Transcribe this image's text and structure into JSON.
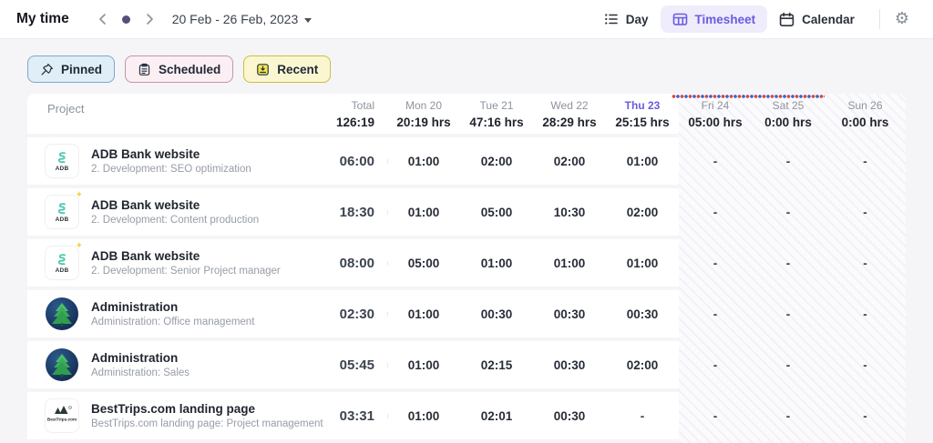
{
  "topbar": {
    "title": "My time",
    "date_range": "20 Feb - 26 Feb, 2023",
    "views": [
      {
        "label": "Day",
        "icon": "list-icon",
        "active": false
      },
      {
        "label": "Timesheet",
        "icon": "table-icon",
        "active": true
      },
      {
        "label": "Calendar",
        "icon": "calendar-icon",
        "active": false
      }
    ]
  },
  "filters": [
    {
      "label": "Pinned",
      "icon": "pin-icon",
      "bg": "#dfeef7",
      "border": "#7fa9c6"
    },
    {
      "label": "Scheduled",
      "icon": "clipboard-icon",
      "bg": "#fceff3",
      "border": "#c495a7"
    },
    {
      "label": "Recent",
      "icon": "recent-icon",
      "bg": "#faf7d0",
      "border": "#c9bd45"
    }
  ],
  "colors": {
    "accent_primary": "#6a5be0",
    "today_highlight": "#6a5be0",
    "bunting_red": "#d9463c",
    "bunting_blue": "#3f63cc"
  },
  "table": {
    "project_header": "Project",
    "total_header": {
      "label": "Total",
      "value": "126:19"
    },
    "days": [
      {
        "label": "Mon 20",
        "hours": "20:19 hrs",
        "today": false,
        "weekend": false
      },
      {
        "label": "Tue 21",
        "hours": "47:16 hrs",
        "today": false,
        "weekend": false
      },
      {
        "label": "Wed 22",
        "hours": "28:29 hrs",
        "today": false,
        "weekend": false
      },
      {
        "label": "Thu 23",
        "hours": "25:15 hrs",
        "today": true,
        "weekend": false
      },
      {
        "label": "Fri 24",
        "hours": "05:00 hrs",
        "today": false,
        "weekend": true
      },
      {
        "label": "Sat 25",
        "hours": "0:00 hrs",
        "today": false,
        "weekend": true
      },
      {
        "label": "Sun 26",
        "hours": "0:00 hrs",
        "today": false,
        "weekend": true
      }
    ],
    "rows": [
      {
        "project": "ADB Bank website",
        "task": "2. Development: SEO optimization",
        "logo": "adb-bank-logo",
        "sparkle": false,
        "total": "06:00",
        "values": [
          "01:00",
          "02:00",
          "02:00",
          "01:00",
          "-",
          "-",
          "-"
        ]
      },
      {
        "project": "ADB Bank website",
        "task": "2. Development: Content production",
        "logo": "adb-bank-logo",
        "sparkle": true,
        "total": "18:30",
        "values": [
          "01:00",
          "05:00",
          "10:30",
          "02:00",
          "-",
          "-",
          "-"
        ]
      },
      {
        "project": "ADB Bank website",
        "task": "2. Development: Senior Project manager",
        "logo": "adb-bank-logo",
        "sparkle": true,
        "total": "08:00",
        "values": [
          "05:00",
          "01:00",
          "01:00",
          "01:00",
          "-",
          "-",
          "-"
        ]
      },
      {
        "project": "Administration",
        "task": "Administration: Office management",
        "logo": "administration-logo",
        "sparkle": false,
        "total": "02:30",
        "values": [
          "01:00",
          "00:30",
          "00:30",
          "00:30",
          "-",
          "-",
          "-"
        ]
      },
      {
        "project": "Administration",
        "task": "Administration: Sales",
        "logo": "administration-logo",
        "sparkle": false,
        "total": "05:45",
        "values": [
          "01:00",
          "02:15",
          "00:30",
          "02:00",
          "-",
          "-",
          "-"
        ]
      },
      {
        "project": "BestTrips.com landing page",
        "task": "BestTrips.com landing page: Project management",
        "logo": "besttrips-logo",
        "sparkle": false,
        "total": "03:31",
        "values": [
          "01:00",
          "02:01",
          "00:30",
          "-",
          "-",
          "-",
          "-"
        ]
      }
    ]
  }
}
